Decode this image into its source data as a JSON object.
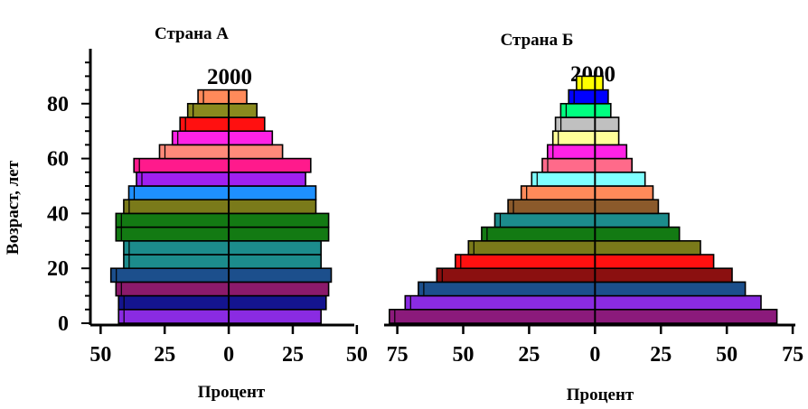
{
  "chart_data": [
    {
      "type": "bar",
      "orientation": "population-pyramid",
      "title": "Страна А",
      "subtitle": "2000",
      "xlabel": "Процент",
      "ylabel": "Возраст, лет",
      "x_tick_labels": [
        "50",
        "25",
        "0",
        "25",
        "50"
      ],
      "x_ticks": [
        -50,
        -25,
        0,
        25,
        50
      ],
      "xlim": [
        -54,
        49
      ],
      "y_tick_labels": [
        "0",
        "20",
        "40",
        "60",
        "80"
      ],
      "y_ticks": [
        0,
        20,
        40,
        60,
        80
      ],
      "ylim": [
        0,
        100
      ],
      "grid": false,
      "bars": [
        {
          "age_start": 0,
          "left": 43,
          "right": 36,
          "color": "#8a2be2"
        },
        {
          "age_start": 5,
          "left": 43,
          "right": 38,
          "color": "#14148f"
        },
        {
          "age_start": 10,
          "left": 44,
          "right": 39,
          "color": "#8b1a6b"
        },
        {
          "age_start": 15,
          "left": 46,
          "right": 40,
          "color": "#1c4f8c"
        },
        {
          "age_start": 20,
          "left": 41,
          "right": 36,
          "color": "#1c8c8c"
        },
        {
          "age_start": 25,
          "left": 41,
          "right": 36,
          "color": "#1c8c8c"
        },
        {
          "age_start": 30,
          "left": 44,
          "right": 39,
          "color": "#137a13"
        },
        {
          "age_start": 35,
          "left": 44,
          "right": 39,
          "color": "#137a13"
        },
        {
          "age_start": 40,
          "left": 41,
          "right": 34,
          "color": "#7a7a1a"
        },
        {
          "age_start": 45,
          "left": 39,
          "right": 34,
          "color": "#1e90ff"
        },
        {
          "age_start": 50,
          "left": 36,
          "right": 30,
          "color": "#a020f0"
        },
        {
          "age_start": 55,
          "left": 37,
          "right": 32,
          "color": "#ff1a8c"
        },
        {
          "age_start": 60,
          "left": 27,
          "right": 21,
          "color": "#ff8a7a"
        },
        {
          "age_start": 65,
          "left": 22,
          "right": 17,
          "color": "#ff22e6"
        },
        {
          "age_start": 70,
          "left": 19,
          "right": 14,
          "color": "#ff1010"
        },
        {
          "age_start": 75,
          "left": 16,
          "right": 11,
          "color": "#8a8a1e"
        },
        {
          "age_start": 80,
          "left": 12,
          "right": 7,
          "color": "#ff8a5a"
        }
      ]
    },
    {
      "type": "bar",
      "orientation": "population-pyramid",
      "title": "Страна Б",
      "subtitle": "2000",
      "xlabel": "Процент",
      "ylabel": "",
      "x_tick_labels": [
        "75",
        "50",
        "25",
        "0",
        "25",
        "50",
        "75"
      ],
      "x_ticks": [
        -75,
        -50,
        -25,
        0,
        25,
        50,
        75
      ],
      "xlim": [
        -80,
        76
      ],
      "y_ticks": [
        0,
        20,
        40,
        60,
        80
      ],
      "ylim": [
        0,
        100
      ],
      "grid": false,
      "bars": [
        {
          "age_start": 0,
          "left": 78,
          "right": 69,
          "color": "#8b1a7b"
        },
        {
          "age_start": 5,
          "left": 72,
          "right": 63,
          "color": "#8a2be2"
        },
        {
          "age_start": 10,
          "left": 67,
          "right": 57,
          "color": "#1c4f8c"
        },
        {
          "age_start": 15,
          "left": 60,
          "right": 52,
          "color": "#8b1010"
        },
        {
          "age_start": 20,
          "left": 53,
          "right": 45,
          "color": "#ff1010"
        },
        {
          "age_start": 25,
          "left": 48,
          "right": 40,
          "color": "#7a7a1a"
        },
        {
          "age_start": 30,
          "left": 43,
          "right": 32,
          "color": "#137a13"
        },
        {
          "age_start": 35,
          "left": 38,
          "right": 28,
          "color": "#1c8c8c"
        },
        {
          "age_start": 40,
          "left": 33,
          "right": 24,
          "color": "#8b5a2b"
        },
        {
          "age_start": 45,
          "left": 28,
          "right": 22,
          "color": "#ff8a5a"
        },
        {
          "age_start": 50,
          "left": 24,
          "right": 19,
          "color": "#7fffff"
        },
        {
          "age_start": 55,
          "left": 20,
          "right": 14,
          "color": "#ff6a8a"
        },
        {
          "age_start": 60,
          "left": 18,
          "right": 12,
          "color": "#ff22e6"
        },
        {
          "age_start": 65,
          "left": 16,
          "right": 9,
          "color": "#ffff99"
        },
        {
          "age_start": 70,
          "left": 15,
          "right": 9,
          "color": "#c0c0c0"
        },
        {
          "age_start": 75,
          "left": 13,
          "right": 6,
          "color": "#00ff80"
        },
        {
          "age_start": 80,
          "left": 10,
          "right": 5,
          "color": "#0000ff"
        },
        {
          "age_start": 85,
          "left": 7,
          "right": 3,
          "color": "#ffff00"
        }
      ]
    }
  ]
}
